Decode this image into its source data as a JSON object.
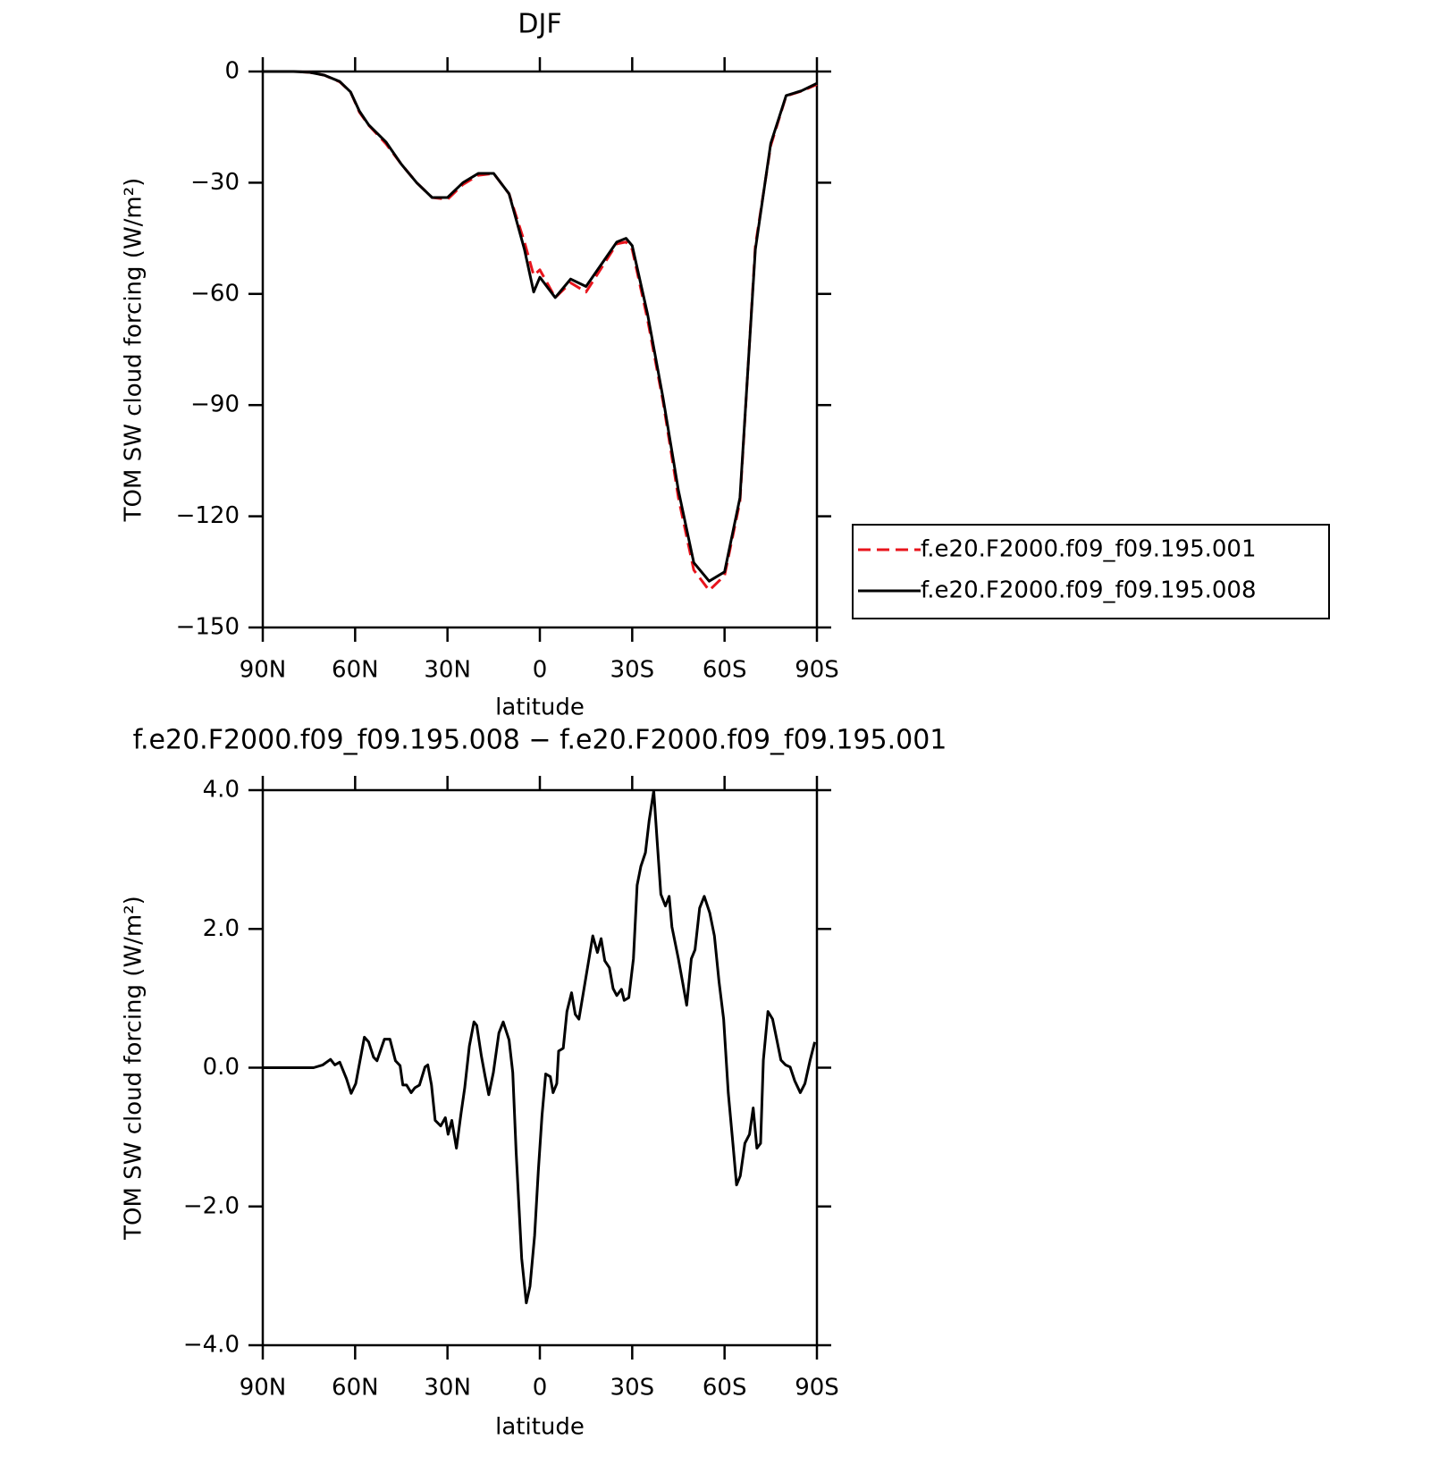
{
  "chart_data": [
    {
      "type": "line",
      "title": "DJF",
      "x_label": "latitude",
      "y_label": "TOM SW cloud forcing (W/m²)",
      "xlim": [
        90,
        -90
      ],
      "xticks": [
        {
          "value": 90,
          "label": "90N"
        },
        {
          "value": 60,
          "label": "60N"
        },
        {
          "value": 30,
          "label": "30N"
        },
        0,
        {
          "value": -30,
          "label": "30S"
        },
        {
          "value": -60,
          "label": "60S"
        },
        {
          "value": -90,
          "label": "90S"
        }
      ],
      "ylim": [
        -150,
        0
      ],
      "yticks": [
        0,
        {
          "value": -30,
          "label": "−30"
        },
        {
          "value": -60,
          "label": "−60"
        },
        {
          "value": -90,
          "label": "−90"
        },
        {
          "value": -120,
          "label": "−120"
        },
        {
          "value": -150,
          "label": "−150"
        }
      ],
      "legend": "right",
      "x": [
        90,
        85,
        80,
        75,
        70,
        65,
        61.5,
        58.6,
        55.6,
        50,
        45,
        40,
        35,
        30,
        25,
        20,
        15,
        10,
        5,
        2,
        0,
        -5,
        -10,
        -15,
        -20,
        -25,
        -28,
        -30,
        -35,
        -40,
        -45,
        -50,
        -55,
        -60,
        -65,
        -70,
        -75,
        -80,
        -85,
        -90
      ],
      "series": [
        {
          "name": "f.e20.F2000.f09_f09.195.001",
          "color": "#e8141c",
          "style": "dashed",
          "values": [
            0,
            0,
            0,
            -0.2,
            -1,
            -2.8,
            -5.5,
            -11,
            -14.5,
            -19.5,
            -25,
            -30,
            -34,
            -34.5,
            -30.5,
            -28,
            -27.5,
            -33,
            -46,
            -55,
            -53.5,
            -61,
            -57,
            -59.5,
            -53,
            -46.5,
            -46,
            -48,
            -67,
            -89,
            -115,
            -134.5,
            -140,
            -136,
            -116,
            -47,
            -20,
            -6.6,
            -5.3,
            -3.5
          ]
        },
        {
          "name": "f.e20.F2000.f09_f09.195.008",
          "color": "#000000",
          "style": "solid",
          "values": [
            0,
            0,
            0,
            -0.2,
            -1,
            -2.7,
            -5.5,
            -10.7,
            -14.4,
            -19,
            -25,
            -30,
            -34,
            -34,
            -30,
            -27.5,
            -27.5,
            -33,
            -48,
            -59.5,
            -55.5,
            -61,
            -56,
            -58,
            -52,
            -46,
            -45,
            -47,
            -65.5,
            -88,
            -113,
            -132.5,
            -137.5,
            -135,
            -115,
            -48,
            -19.4,
            -6.5,
            -5.2,
            -3.2
          ]
        }
      ]
    },
    {
      "type": "line",
      "title": "f.e20.F2000.f09_f09.195.008 − f.e20.F2000.f09_f09.195.001",
      "x_label": "latitude",
      "y_label": "TOM SW cloud forcing (W/m²)",
      "xlim": [
        90,
        -90
      ],
      "xticks": [
        {
          "value": 90,
          "label": "90N"
        },
        {
          "value": 60,
          "label": "60N"
        },
        {
          "value": 30,
          "label": "30N"
        },
        0,
        {
          "value": -30,
          "label": "30S"
        },
        {
          "value": -60,
          "label": "60S"
        },
        {
          "value": -90,
          "label": "90S"
        }
      ],
      "ylim": [
        -4,
        4
      ],
      "yticks": [
        {
          "value": 4,
          "label": "4.0"
        },
        {
          "value": 2,
          "label": "2.0"
        },
        {
          "value": 0,
          "label": "0.0"
        },
        {
          "value": -2,
          "label": "−2.0"
        },
        {
          "value": -4,
          "label": "−4.0"
        }
      ],
      "x": [
        90,
        73.5,
        70.5,
        68,
        66.6,
        65,
        62.8,
        61.3,
        59.8,
        57,
        55.6,
        54,
        52.9,
        50.5,
        48.7,
        46.9,
        45.4,
        44.5,
        43.3,
        41.8,
        40.6,
        39.1,
        37.3,
        36.4,
        35.2,
        34,
        32.2,
        30.7,
        29.8,
        28.6,
        27.1,
        25.6,
        24.4,
        22.9,
        21.4,
        20.5,
        19,
        17.8,
        16.6,
        15.1,
        13.3,
        11.9,
        10,
        8.8,
        7.7,
        5.9,
        4.4,
        3.2,
        1.7,
        0.5,
        -0.7,
        -1.9,
        -3.4,
        -4.3,
        -5.5,
        -6.1,
        -7.6,
        -8.8,
        -10.3,
        -11.5,
        -12.7,
        -14.2,
        -15.7,
        -17.2,
        -18.7,
        -19.9,
        -21.1,
        -22.6,
        -23.8,
        -25,
        -26.5,
        -27.4,
        -28.9,
        -30.4,
        -31.6,
        -32.8,
        -34.3,
        -35.5,
        -37,
        -38.1,
        -39.3,
        -40.8,
        -42,
        -42.9,
        -45,
        -46.5,
        -47.7,
        -49.2,
        -50.4,
        -51.9,
        -53.4,
        -55.2,
        -56.7,
        -58.2,
        -59.7,
        -61.2,
        -62.7,
        -63.9,
        -65.1,
        -66.6,
        -68.1,
        -69.3,
        -70.5,
        -71.7,
        -72.6,
        -74.1,
        -75.6,
        -76.8,
        -78.3,
        -79.8,
        -81.3,
        -82.8,
        -84.6,
        -86.1,
        -87.8,
        -89.3
      ],
      "series": [
        {
          "name": "f.e20.F2000.f09_f09.195.008 − f.e20.F2000.f09_f09.195.001",
          "color": "#000000",
          "style": "solid",
          "values": [
            0,
            0,
            0.04,
            0.12,
            0.04,
            0.08,
            -0.16,
            -0.37,
            -0.23,
            0.44,
            0.37,
            0.15,
            0.1,
            0.41,
            0.41,
            0.1,
            0.03,
            -0.25,
            -0.25,
            -0.36,
            -0.29,
            -0.25,
            0.01,
            0.04,
            -0.25,
            -0.76,
            -0.84,
            -0.72,
            -0.96,
            -0.76,
            -1.16,
            -0.66,
            -0.29,
            0.31,
            0.66,
            0.61,
            0.17,
            -0.12,
            -0.39,
            -0.07,
            0.5,
            0.66,
            0.4,
            -0.07,
            -1.22,
            -2.75,
            -3.39,
            -3.15,
            -2.42,
            -1.49,
            -0.69,
            -0.09,
            -0.13,
            -0.36,
            -0.23,
            0.24,
            0.28,
            0.81,
            1.08,
            0.77,
            0.7,
            1.1,
            1.5,
            1.9,
            1.66,
            1.86,
            1.54,
            1.44,
            1.14,
            1.04,
            1.13,
            0.97,
            1.01,
            1.57,
            2.63,
            2.9,
            3.1,
            3.56,
            3.99,
            3.27,
            2.5,
            2.33,
            2.47,
            2.03,
            1.57,
            1.2,
            0.9,
            1.57,
            1.7,
            2.3,
            2.47,
            2.23,
            1.9,
            1.24,
            0.7,
            -0.36,
            -1.09,
            -1.69,
            -1.56,
            -1.09,
            -0.96,
            -0.58,
            -1.16,
            -1.09,
            0.11,
            0.81,
            0.7,
            0.44,
            0.11,
            0.04,
            0.01,
            -0.19,
            -0.36,
            -0.23,
            0.11,
            0.37
          ]
        }
      ]
    }
  ]
}
